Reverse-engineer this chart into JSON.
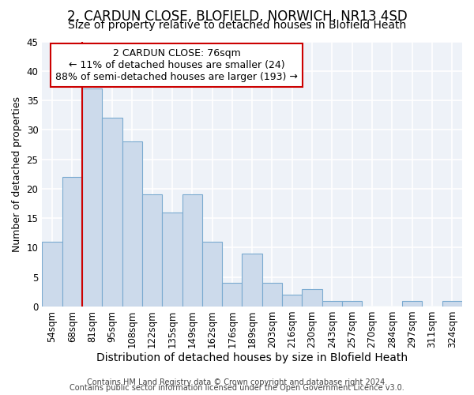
{
  "title": "2, CARDUN CLOSE, BLOFIELD, NORWICH, NR13 4SD",
  "subtitle": "Size of property relative to detached houses in Blofield Heath",
  "xlabel": "Distribution of detached houses by size in Blofield Heath",
  "ylabel": "Number of detached properties",
  "categories": [
    "54sqm",
    "68sqm",
    "81sqm",
    "95sqm",
    "108sqm",
    "122sqm",
    "135sqm",
    "149sqm",
    "162sqm",
    "176sqm",
    "189sqm",
    "203sqm",
    "216sqm",
    "230sqm",
    "243sqm",
    "257sqm",
    "270sqm",
    "284sqm",
    "297sqm",
    "311sqm",
    "324sqm"
  ],
  "values": [
    11,
    22,
    37,
    32,
    28,
    19,
    16,
    19,
    11,
    4,
    9,
    4,
    2,
    3,
    1,
    1,
    0,
    0,
    1,
    0,
    1
  ],
  "bar_color": "#ccdaeb",
  "bar_edge_color": "#7aaad0",
  "vline_x_index": 2,
  "vline_color": "#cc0000",
  "annotation_text": "2 CARDUN CLOSE: 76sqm\n← 11% of detached houses are smaller (24)\n88% of semi-detached houses are larger (193) →",
  "annotation_box_color": "white",
  "annotation_box_edge": "#cc0000",
  "ylim": [
    0,
    45
  ],
  "yticks": [
    0,
    5,
    10,
    15,
    20,
    25,
    30,
    35,
    40,
    45
  ],
  "footer_line1": "Contains HM Land Registry data © Crown copyright and database right 2024.",
  "footer_line2": "Contains public sector information licensed under the Open Government Licence v3.0.",
  "background_color": "#eef2f8",
  "grid_color": "white",
  "title_fontsize": 12,
  "subtitle_fontsize": 10,
  "xlabel_fontsize": 10,
  "ylabel_fontsize": 9,
  "tick_fontsize": 8.5,
  "annotation_fontsize": 9,
  "footer_fontsize": 7
}
